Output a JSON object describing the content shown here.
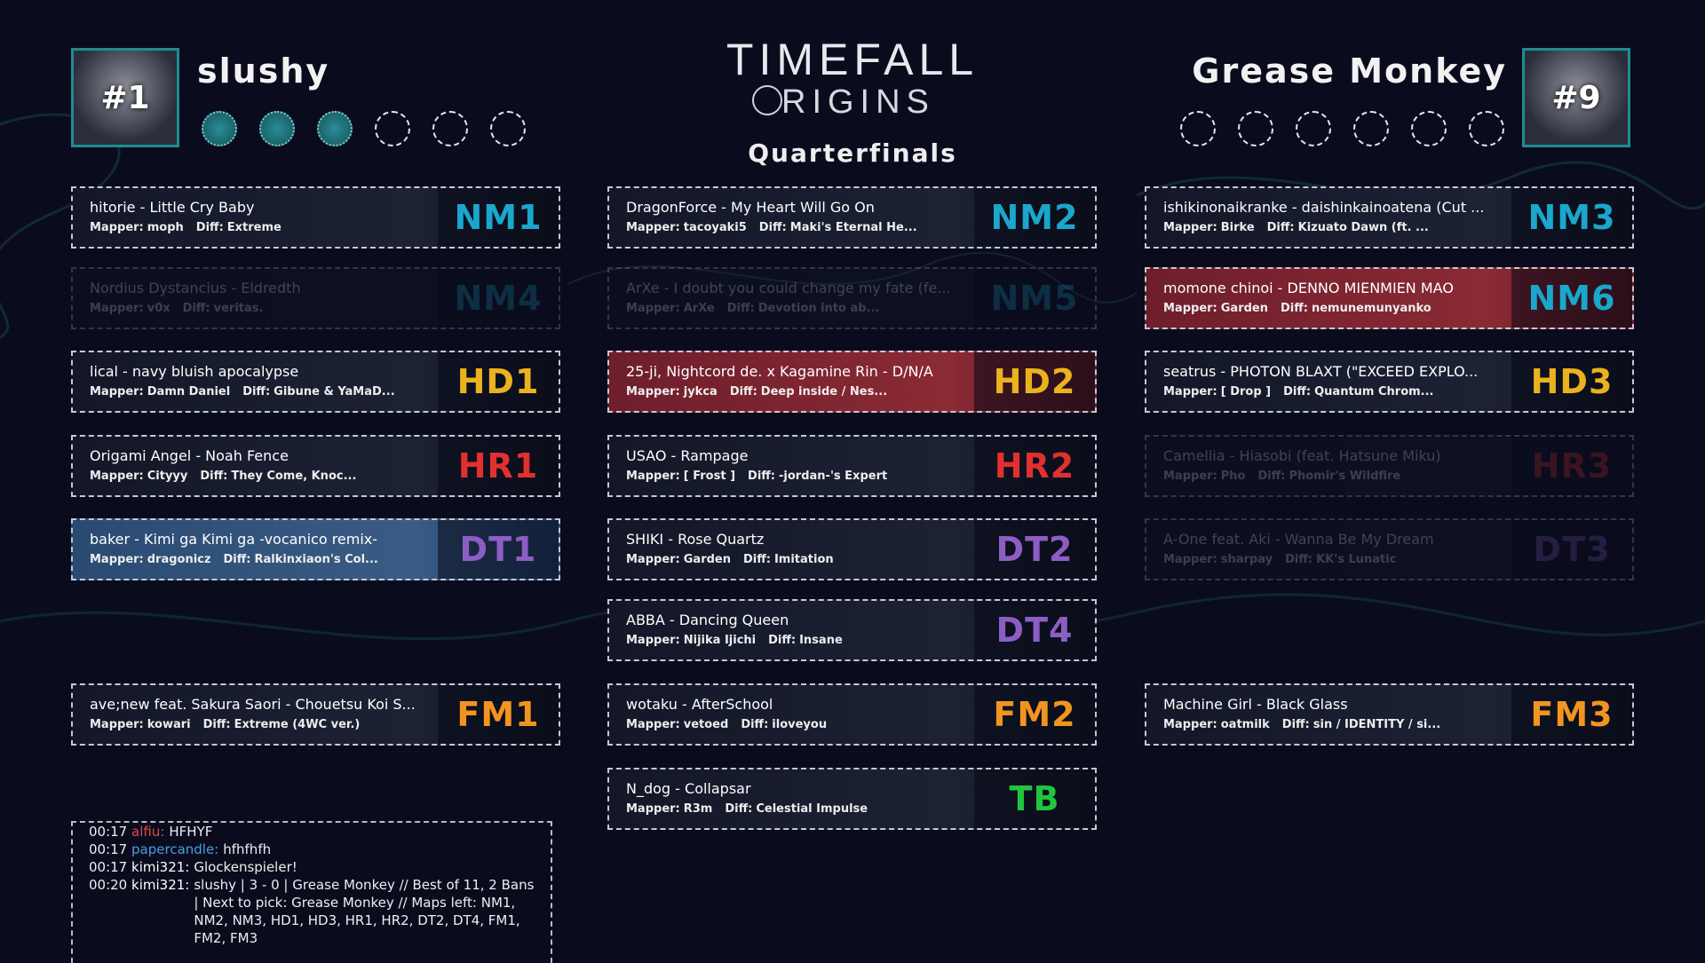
{
  "header": {
    "logo_top": "TIMEFALL",
    "logo_bottom": "RIGINS",
    "round": "Quarterfinals"
  },
  "left": {
    "seed": "#1",
    "name": "slushy",
    "points": 3,
    "points_to_win": 6
  },
  "right": {
    "seed": "#9",
    "name": "Grease Monkey",
    "points": 0,
    "points_to_win": 6
  },
  "labels": {
    "mapper": "Mapper:",
    "diff": "Diff:"
  },
  "mod_colors": {
    "NM": "#1ba6cc",
    "HD": "#eab21e",
    "HR": "#e2302e",
    "DT": "#8c5ec4",
    "FM": "#f29420",
    "TB": "#22c43e"
  },
  "columns": [
    [
      {
        "code": "NM1",
        "title": "hitorie - Little Cry Baby",
        "mapper": "moph",
        "diff": "Extreme",
        "state": "open"
      },
      {
        "code": "NM4",
        "title": "Nordius Dystancius - Eldredth",
        "mapper": "v0x",
        "diff": "veritas.",
        "state": "ban"
      },
      {
        "code": "HD1",
        "title": "lical - navy bluish apocalypse",
        "mapper": "Damn Daniel",
        "diff": "Gibune & YaMaD...",
        "state": "open"
      },
      {
        "code": "HR1",
        "title": "Origami Angel - Noah Fence",
        "mapper": "Cityyy",
        "diff": "They Come, Knoc...",
        "state": "open"
      },
      {
        "code": "DT1",
        "title": "baker - Kimi ga Kimi ga -vocanico remix-",
        "mapper": "dragonicz",
        "diff": "Ralkinxiaon's Col...",
        "state": "pick-blue"
      },
      {
        "code": "FM1",
        "title": "ave;new feat. Sakura Saori - Chouetsu Koi S...",
        "mapper": "kowari",
        "diff": "Extreme (4WC ver.)",
        "state": "open"
      }
    ],
    [
      {
        "code": "NM2",
        "title": "DragonForce - My Heart Will Go On",
        "mapper": "tacoyaki5",
        "diff": "Maki's Eternal He...",
        "state": "open"
      },
      {
        "code": "NM5",
        "title": "ArXe - I doubt you could change my fate (fe...",
        "mapper": "ArXe",
        "diff": "Devotion into ab...",
        "state": "ban"
      },
      {
        "code": "HD2",
        "title": "25-ji, Nightcord de. x Kagamine Rin - D/N/A",
        "mapper": "jykca",
        "diff": "Deep inside / Nes...",
        "state": "pick-red"
      },
      {
        "code": "HR2",
        "title": "USAO - Rampage",
        "mapper": "[ Frost ]",
        "diff": "-jordan-'s Expert",
        "state": "open"
      },
      {
        "code": "DT2",
        "title": "SHIKI - Rose Quartz",
        "mapper": "Garden",
        "diff": "Imitation",
        "state": "open"
      },
      {
        "code": "DT4",
        "title": "ABBA - Dancing Queen",
        "mapper": "Nijika Ijichi",
        "diff": "Insane",
        "state": "open"
      },
      {
        "code": "FM2",
        "title": "wotaku - AfterSchool",
        "mapper": "vetoed",
        "diff": "iloveyou",
        "state": "open"
      },
      {
        "code": "TB",
        "title": "N_dog - Collapsar",
        "mapper": "R3m",
        "diff": "Celestial Impulse",
        "state": "open"
      }
    ],
    [
      {
        "code": "NM3",
        "title": "ishikinonaikranke - daishinkainoatena (Cut ...",
        "mapper": "Birke",
        "diff": "Kizuato Dawn (ft. ...",
        "state": "open"
      },
      {
        "code": "NM6",
        "title": "momone chinoi - DENNO MIENMIEN MAO",
        "mapper": "Garden",
        "diff": "nemunemunyanko",
        "state": "pick-red"
      },
      {
        "code": "HD3",
        "title": "seatrus - PHOTON BLAXT (\"EXCEED EXPLO...",
        "mapper": "[ Drop ]",
        "diff": "Quantum Chrom...",
        "state": "open"
      },
      {
        "code": "HR3",
        "title": "Camellia - Hiasobi (feat. Hatsune Miku)",
        "mapper": "Pho",
        "diff": "Phomir's Wildfire",
        "state": "ban"
      },
      {
        "code": "DT3",
        "title": "A-One feat. Aki - Wanna Be My Dream",
        "mapper": "sharpay",
        "diff": "KK's Lunatic",
        "state": "ban"
      },
      {
        "code": "FM3",
        "title": "Machine Girl - Black Glass",
        "mapper": "oatmilk",
        "diff": "sin / IDENTITY / si...",
        "state": "open"
      }
    ]
  ],
  "chat": [
    {
      "time": "00:17",
      "user": "alfiu:",
      "color": "#e04848",
      "text": "HFHYF"
    },
    {
      "time": "00:17",
      "user": "papercandle:",
      "color": "#4a9ee0",
      "text": "hfhfhfh"
    },
    {
      "time": "00:17",
      "user": "kimi321:",
      "color": "#ffffff",
      "text": "Glockenspieler!"
    },
    {
      "time": "00:20",
      "user": "kimi321:",
      "color": "#ffffff",
      "text": "slushy | 3 - 0 | Grease Monkey // Best of 11, 2 Bans | Next to pick: Grease Monkey // Maps left: NM1, NM2, NM3, HD1, HD3, HR1, HR2, DT2, DT4, FM1, FM2, FM3"
    }
  ]
}
